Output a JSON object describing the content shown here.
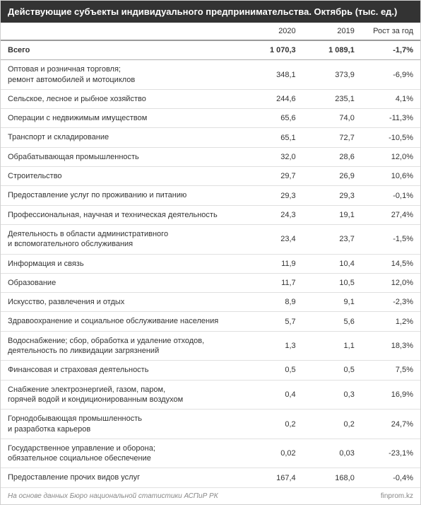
{
  "header": {
    "title": "Действующие субъекты индивидуального предпринимательства. Октябрь (тыс. ед.)"
  },
  "columns": {
    "c0": "",
    "c1": "2020",
    "c2": "2019",
    "c3": "Рост за год"
  },
  "total": {
    "label": "Всего",
    "v2020": "1 070,3",
    "v2019": "1 089,1",
    "growth": "-1,7%"
  },
  "rows": [
    {
      "label": "Оптовая и розничная торговля;\nремонт автомобилей и мотоциклов",
      "v2020": "348,1",
      "v2019": "373,9",
      "growth": "-6,9%"
    },
    {
      "label": "Сельское, лесное и рыбное хозяйство",
      "v2020": "244,6",
      "v2019": "235,1",
      "growth": "4,1%"
    },
    {
      "label": "Операции с недвижимым имуществом",
      "v2020": "65,6",
      "v2019": "74,0",
      "growth": "-11,3%"
    },
    {
      "label": "Транспорт и складирование",
      "v2020": "65,1",
      "v2019": "72,7",
      "growth": "-10,5%"
    },
    {
      "label": "Обрабатывающая промышленность",
      "v2020": "32,0",
      "v2019": "28,6",
      "growth": "12,0%"
    },
    {
      "label": "Строительство",
      "v2020": "29,7",
      "v2019": "26,9",
      "growth": "10,6%"
    },
    {
      "label": "Предоставление услуг по проживанию и питанию",
      "v2020": "29,3",
      "v2019": "29,3",
      "growth": "-0,1%"
    },
    {
      "label": "Профессиональная, научная и техническая деятельность",
      "v2020": "24,3",
      "v2019": "19,1",
      "growth": "27,4%"
    },
    {
      "label": "Деятельность в области административного\nи вспомогательного обслуживания",
      "v2020": "23,4",
      "v2019": "23,7",
      "growth": "-1,5%"
    },
    {
      "label": "Информация и связь",
      "v2020": "11,9",
      "v2019": "10,4",
      "growth": "14,5%"
    },
    {
      "label": "Образование",
      "v2020": "11,7",
      "v2019": "10,5",
      "growth": "12,0%"
    },
    {
      "label": "Искусство, развлечения и отдых",
      "v2020": "8,9",
      "v2019": "9,1",
      "growth": "-2,3%"
    },
    {
      "label": "Здравоохранение и социальное обслуживание населения",
      "v2020": "5,7",
      "v2019": "5,6",
      "growth": "1,2%"
    },
    {
      "label": "Водоснабжение; сбор, обработка и удаление отходов,\nдеятельность по ликвидации загрязнений",
      "v2020": "1,3",
      "v2019": "1,1",
      "growth": "18,3%"
    },
    {
      "label": "Финансовая и страховая деятельность",
      "v2020": "0,5",
      "v2019": "0,5",
      "growth": "7,5%"
    },
    {
      "label": "Снабжение электроэнергией, газом, паром,\nгорячей водой и кондиционированным воздухом",
      "v2020": "0,4",
      "v2019": "0,3",
      "growth": "16,9%"
    },
    {
      "label": "Горнодобывающая промышленность\nи разработка карьеров",
      "v2020": "0,2",
      "v2019": "0,2",
      "growth": "24,7%"
    },
    {
      "label": "Государственное управление и оборона;\nобязательное социальное обеспечение",
      "v2020": "0,02",
      "v2019": "0,03",
      "growth": "-23,1%"
    },
    {
      "label": "Предоставление прочих видов услуг",
      "v2020": "167,4",
      "v2019": "168,0",
      "growth": "-0,4%"
    }
  ],
  "footer": {
    "source": "На основе данных Бюро национальной статистики АСПиР РК",
    "link": "finprom.kz"
  },
  "styles": {
    "header_bg": "#333333",
    "header_color": "#ffffff",
    "border_color": "#e0e0e0",
    "text_color": "#333333",
    "footer_color": "#888888",
    "font_size_header": 13,
    "font_size_body": 11,
    "font_size_footer": 10
  }
}
